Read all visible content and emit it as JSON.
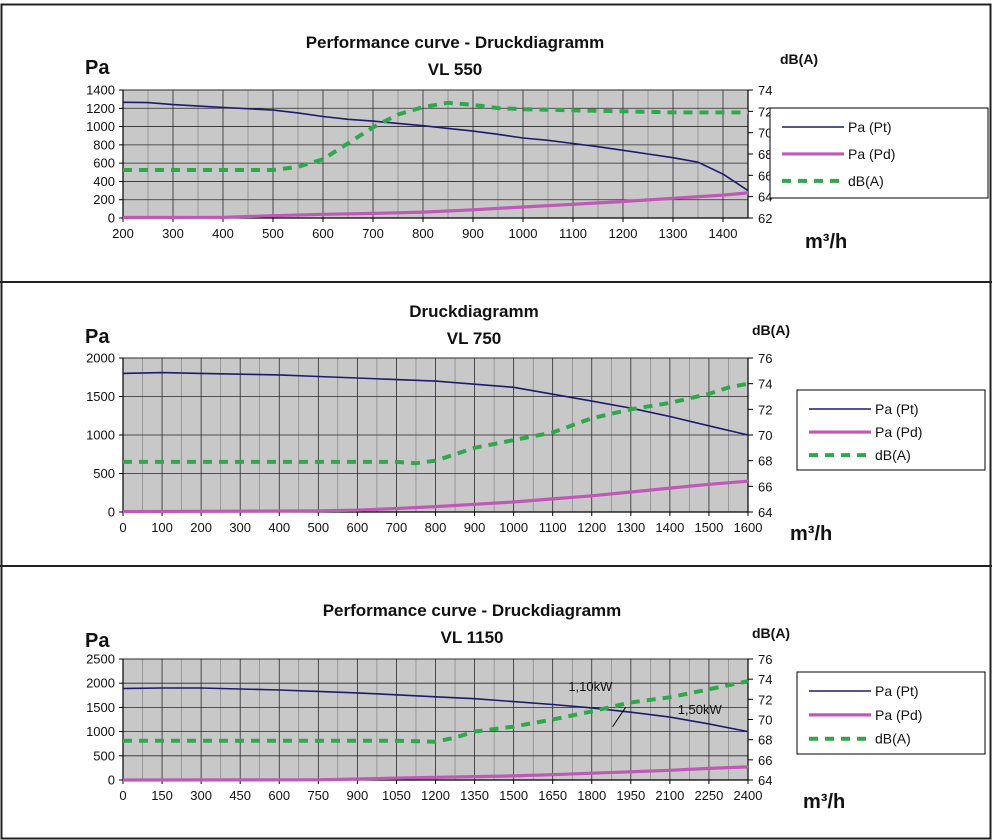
{
  "colors": {
    "pt": "#1c1c6e",
    "pd": "#c058b8",
    "db": "#2ea84a",
    "plot_bg": "#c8c8c8",
    "grid": "#2a2a2a",
    "frame": "#222222"
  },
  "legend_labels": {
    "pt": "Pa (Pt)",
    "pd": "Pa (Pd)",
    "db": "dB(A)"
  },
  "chart_data": [
    {
      "type": "line",
      "title_lines": [
        "Performance curve - Druckdiagramm",
        "VL 550"
      ],
      "ylabel": "Pa",
      "y2label": "dB(A)",
      "xlabel": "m³/h",
      "xlim": [
        200,
        1450
      ],
      "xticks": [
        200,
        300,
        400,
        500,
        600,
        700,
        800,
        900,
        1000,
        1100,
        1200,
        1300,
        1400
      ],
      "ylim": [
        0,
        1400
      ],
      "yticks": [
        0,
        200,
        400,
        600,
        800,
        1000,
        1200,
        1400
      ],
      "y2lim": [
        62,
        74
      ],
      "y2ticks": [
        62,
        64,
        66,
        68,
        70,
        72,
        74
      ],
      "legend": "right",
      "grid": true,
      "series": [
        {
          "key": "pt",
          "name": "Pa (Pt)",
          "axis": "left",
          "style": "solid",
          "x": [
            200,
            250,
            300,
            400,
            500,
            550,
            600,
            650,
            700,
            750,
            800,
            850,
            900,
            950,
            1000,
            1050,
            1100,
            1150,
            1200,
            1250,
            1300,
            1350,
            1400,
            1450
          ],
          "y": [
            1265,
            1262,
            1240,
            1210,
            1180,
            1150,
            1110,
            1080,
            1060,
            1035,
            1010,
            980,
            950,
            915,
            875,
            850,
            815,
            780,
            740,
            700,
            660,
            610,
            480,
            300
          ]
        },
        {
          "key": "pd",
          "name": "Pa (Pd)",
          "axis": "left",
          "style": "solid",
          "x": [
            200,
            400,
            500,
            600,
            700,
            800,
            900,
            1000,
            1100,
            1200,
            1300,
            1400,
            1450
          ],
          "y": [
            5,
            8,
            25,
            40,
            50,
            65,
            90,
            120,
            150,
            180,
            215,
            250,
            275
          ]
        },
        {
          "key": "db",
          "name": "dB(A)",
          "axis": "right",
          "style": "dashed",
          "x": [
            200,
            300,
            400,
            500,
            550,
            600,
            650,
            700,
            750,
            800,
            850,
            900,
            950,
            1000,
            1100,
            1200,
            1300,
            1400,
            1450
          ],
          "y": [
            66.5,
            66.5,
            66.5,
            66.5,
            66.8,
            67.5,
            69.0,
            70.5,
            71.7,
            72.4,
            72.8,
            72.6,
            72.3,
            72.2,
            72.1,
            72.0,
            71.9,
            71.9,
            71.9
          ]
        }
      ],
      "annotations": []
    },
    {
      "type": "line",
      "title_lines": [
        "Druckdiagramm",
        "VL 750"
      ],
      "ylabel": "Pa",
      "y2label": "dB(A)",
      "xlabel": "m³/h",
      "xlim": [
        0,
        1600
      ],
      "xticks": [
        0,
        100,
        200,
        300,
        400,
        500,
        600,
        700,
        800,
        900,
        1000,
        1100,
        1200,
        1300,
        1400,
        1500,
        1600
      ],
      "ylim": [
        0,
        2000
      ],
      "yticks": [
        0,
        500,
        1000,
        1500,
        2000
      ],
      "y2lim": [
        64,
        76
      ],
      "y2ticks": [
        64,
        66,
        68,
        70,
        72,
        74,
        76
      ],
      "legend": "right",
      "grid": true,
      "series": [
        {
          "key": "pt",
          "name": "Pa (Pt)",
          "axis": "left",
          "style": "solid",
          "x": [
            0,
            100,
            200,
            300,
            400,
            500,
            600,
            700,
            800,
            900,
            1000,
            1100,
            1200,
            1300,
            1400,
            1500,
            1600
          ],
          "y": [
            1800,
            1810,
            1800,
            1790,
            1780,
            1760,
            1740,
            1720,
            1700,
            1660,
            1620,
            1530,
            1440,
            1350,
            1240,
            1120,
            1000
          ]
        },
        {
          "key": "pd",
          "name": "Pa (Pd)",
          "axis": "left",
          "style": "solid",
          "x": [
            0,
            500,
            600,
            700,
            800,
            900,
            1000,
            1100,
            1200,
            1300,
            1400,
            1500,
            1600
          ],
          "y": [
            5,
            15,
            25,
            45,
            70,
            100,
            130,
            170,
            210,
            260,
            310,
            360,
            400
          ]
        },
        {
          "key": "db",
          "name": "dB(A)",
          "axis": "right",
          "style": "dashed",
          "x": [
            0,
            700,
            750,
            800,
            850,
            900,
            950,
            1000,
            1100,
            1200,
            1300,
            1400,
            1500,
            1550,
            1600
          ],
          "y": [
            67.9,
            67.9,
            67.8,
            68.0,
            68.5,
            69.0,
            69.3,
            69.6,
            70.2,
            71.3,
            72.0,
            72.5,
            73.2,
            73.7,
            74.0
          ]
        }
      ],
      "annotations": []
    },
    {
      "type": "line",
      "title_lines": [
        "Performance curve - Druckdiagramm",
        "VL 1150"
      ],
      "ylabel": "Pa",
      "y2label": "dB(A)",
      "xlabel": "m³/h",
      "xlim": [
        0,
        2400
      ],
      "xticks": [
        0,
        150,
        300,
        450,
        600,
        750,
        900,
        1050,
        1200,
        1350,
        1500,
        1650,
        1800,
        1950,
        2100,
        2250,
        2400
      ],
      "ylim": [
        0,
        2500
      ],
      "yticks": [
        0,
        500,
        1000,
        1500,
        2000,
        2500
      ],
      "y2lim": [
        64,
        76
      ],
      "y2ticks": [
        64,
        66,
        68,
        70,
        72,
        74,
        76
      ],
      "legend": "right",
      "grid": true,
      "series": [
        {
          "key": "pt",
          "name": "Pa (Pt)",
          "axis": "left",
          "style": "solid",
          "x": [
            0,
            150,
            300,
            450,
            600,
            750,
            900,
            1050,
            1200,
            1350,
            1500,
            1650,
            1800,
            1950,
            2100,
            2250,
            2400
          ],
          "y": [
            1890,
            1900,
            1900,
            1880,
            1860,
            1830,
            1800,
            1760,
            1720,
            1680,
            1620,
            1560,
            1490,
            1400,
            1300,
            1160,
            1000
          ]
        },
        {
          "key": "pd",
          "name": "Pa (Pd)",
          "axis": "left",
          "style": "solid",
          "x": [
            0,
            750,
            900,
            1050,
            1200,
            1350,
            1500,
            1650,
            1800,
            1950,
            2100,
            2250,
            2400
          ],
          "y": [
            0,
            5,
            20,
            40,
            55,
            70,
            85,
            110,
            140,
            170,
            200,
            240,
            270
          ]
        },
        {
          "key": "db",
          "name": "dB(A)",
          "axis": "right",
          "style": "dashed",
          "x": [
            0,
            1050,
            1200,
            1275,
            1350,
            1500,
            1650,
            1800,
            1950,
            2100,
            2250,
            2400
          ],
          "y": [
            67.9,
            67.9,
            67.8,
            68.2,
            68.8,
            69.3,
            70.0,
            70.8,
            71.7,
            72.2,
            73.0,
            73.8
          ]
        }
      ],
      "annotations": [
        {
          "text": "1,10kW",
          "x": 1710,
          "y": 1840
        },
        {
          "text": "1,50kW",
          "x": 2130,
          "y": 1360
        }
      ]
    }
  ]
}
